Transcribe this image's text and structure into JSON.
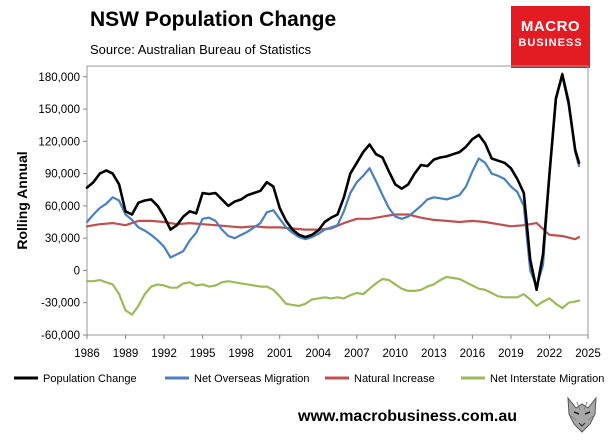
{
  "header": {
    "title": "NSW Population Change",
    "subtitle": "Source: Australian Bureau of Statistics"
  },
  "logo": {
    "line1": "MACRO",
    "line2": "BUSINESS"
  },
  "footer": {
    "website": "www.macrobusiness.com.au"
  },
  "colors": {
    "population_change": "#000000",
    "net_overseas_migration": "#4a7fc1",
    "natural_increase": "#c0504d",
    "net_interstate_migration": "#9bbb59",
    "logo_red": "#e31b23"
  },
  "chart_data": {
    "type": "line",
    "title": "NSW Population Change",
    "subtitle": "Source: Australian Bureau of Statistics",
    "xlabel": "",
    "ylabel": "Rolling Annual",
    "xlim": [
      1986,
      2025
    ],
    "ylim": [
      -60000,
      190000
    ],
    "x_ticks": [
      1986,
      1989,
      1992,
      1995,
      1998,
      2001,
      2004,
      2007,
      2010,
      2013,
      2016,
      2019,
      2022,
      2025
    ],
    "y_ticks": [
      -60000,
      -30000,
      0,
      30000,
      60000,
      90000,
      120000,
      150000,
      180000
    ],
    "y_tick_labels": [
      "-60,000",
      "-30,000",
      "0",
      "30,000",
      "60,000",
      "90,000",
      "120,000",
      "150,000",
      "180,000"
    ],
    "grid": false,
    "legend_position": "bottom",
    "series": [
      {
        "name": "Population Change",
        "color_key": "population_change",
        "x": [
          1986,
          1986.5,
          1987,
          1987.5,
          1988,
          1988.5,
          1989,
          1989.5,
          1990,
          1990.5,
          1991,
          1991.5,
          1992,
          1992.5,
          1993,
          1993.5,
          1994,
          1994.5,
          1995,
          1995.5,
          1996,
          1996.5,
          1997,
          1997.5,
          1998,
          1998.5,
          1999,
          1999.5,
          2000,
          2000.5,
          2001,
          2001.5,
          2002,
          2002.5,
          2003,
          2003.5,
          2004,
          2004.5,
          2005,
          2005.5,
          2006,
          2006.5,
          2007,
          2007.5,
          2008,
          2008.5,
          2009,
          2009.5,
          2010,
          2010.5,
          2011,
          2011.5,
          2012,
          2012.5,
          2013,
          2013.5,
          2014,
          2014.5,
          2015,
          2015.5,
          2016,
          2016.5,
          2017,
          2017.5,
          2018,
          2018.5,
          2019,
          2019.5,
          2020,
          2020.5,
          2021,
          2021.5,
          2022,
          2022.5,
          2023,
          2023.5,
          2024,
          2024.3
        ],
        "values": [
          77000,
          82000,
          90000,
          93000,
          90000,
          80000,
          55000,
          52000,
          63000,
          65000,
          66000,
          60000,
          50000,
          38000,
          42000,
          50000,
          55000,
          53000,
          72000,
          71000,
          72000,
          66000,
          60000,
          64000,
          66000,
          70000,
          72000,
          74000,
          82000,
          78000,
          58000,
          46000,
          38000,
          33000,
          31000,
          33000,
          37000,
          45000,
          49000,
          52000,
          68000,
          90000,
          100000,
          110000,
          117000,
          108000,
          105000,
          92000,
          80000,
          76000,
          80000,
          90000,
          98000,
          97000,
          103000,
          105000,
          106000,
          108000,
          110000,
          115000,
          122000,
          126000,
          118000,
          104000,
          102000,
          100000,
          95000,
          85000,
          72000,
          10000,
          -18000,
          15000,
          90000,
          160000,
          182000,
          155000,
          112000,
          100000
        ]
      },
      {
        "name": "Net Overseas Migration",
        "color_key": "net_overseas_migration",
        "x": [
          1986,
          1986.5,
          1987,
          1987.5,
          1988,
          1988.5,
          1989,
          1989.5,
          1990,
          1990.5,
          1991,
          1991.5,
          1992,
          1992.5,
          1993,
          1993.5,
          1994,
          1994.5,
          1995,
          1995.5,
          1996,
          1996.5,
          1997,
          1997.5,
          1998,
          1998.5,
          1999,
          1999.5,
          2000,
          2000.5,
          2001,
          2001.5,
          2002,
          2002.5,
          2003,
          2003.5,
          2004,
          2004.5,
          2005,
          2005.5,
          2006,
          2006.5,
          2007,
          2007.5,
          2008,
          2008.5,
          2009,
          2009.5,
          2010,
          2010.5,
          2011,
          2011.5,
          2012,
          2012.5,
          2013,
          2013.5,
          2014,
          2014.5,
          2015,
          2015.5,
          2016,
          2016.5,
          2017,
          2017.5,
          2018,
          2018.5,
          2019,
          2019.5,
          2020,
          2020.5,
          2021,
          2021.5,
          2022,
          2022.5,
          2023,
          2023.5,
          2024,
          2024.3
        ],
        "values": [
          45000,
          52000,
          58000,
          62000,
          68000,
          65000,
          52000,
          47000,
          40000,
          37000,
          33000,
          28000,
          22000,
          12000,
          15000,
          18000,
          28000,
          35000,
          48000,
          49000,
          46000,
          38000,
          32000,
          30000,
          33000,
          36000,
          40000,
          44000,
          54000,
          56000,
          48000,
          40000,
          35000,
          31000,
          29000,
          31000,
          34000,
          38000,
          40000,
          42000,
          55000,
          72000,
          82000,
          88000,
          95000,
          83000,
          70000,
          58000,
          50000,
          48000,
          50000,
          55000,
          60000,
          66000,
          68000,
          67000,
          66000,
          68000,
          70000,
          78000,
          92000,
          104000,
          100000,
          90000,
          88000,
          85000,
          78000,
          73000,
          60000,
          0,
          -15000,
          5000,
          90000,
          158000,
          183000,
          158000,
          110000,
          97000
        ]
      },
      {
        "name": "Natural Increase",
        "color_key": "natural_increase",
        "x": [
          1986,
          1987,
          1988,
          1989,
          1990,
          1991,
          1992,
          1993,
          1994,
          1995,
          1996,
          1997,
          1998,
          1999,
          2000,
          2001,
          2002,
          2003,
          2004,
          2005,
          2006,
          2007,
          2008,
          2009,
          2010,
          2011,
          2012,
          2013,
          2014,
          2015,
          2016,
          2017,
          2018,
          2019,
          2020,
          2021,
          2022,
          2023,
          2024,
          2024.3
        ],
        "values": [
          41000,
          43000,
          44000,
          42000,
          46000,
          46000,
          45000,
          43000,
          44000,
          43000,
          42000,
          41000,
          40000,
          41000,
          40000,
          40000,
          39000,
          38000,
          38000,
          39000,
          44000,
          48000,
          48000,
          50000,
          52000,
          52000,
          49000,
          47000,
          46000,
          45000,
          46000,
          45000,
          43000,
          41000,
          42000,
          44000,
          33000,
          32000,
          29000,
          31000
        ]
      },
      {
        "name": "Net Interstate Migration",
        "color_key": "net_interstate_migration",
        "x": [
          1986,
          1986.5,
          1987,
          1987.5,
          1988,
          1988.5,
          1989,
          1989.5,
          1990,
          1990.5,
          1991,
          1991.5,
          1992,
          1992.5,
          1993,
          1993.5,
          1994,
          1994.5,
          1995,
          1995.5,
          1996,
          1996.5,
          1997,
          1997.5,
          1998,
          1998.5,
          1999,
          1999.5,
          2000,
          2000.5,
          2001,
          2001.5,
          2002,
          2002.5,
          2003,
          2003.5,
          2004,
          2004.5,
          2005,
          2005.5,
          2006,
          2006.5,
          2007,
          2007.5,
          2008,
          2008.5,
          2009,
          2009.5,
          2010,
          2010.5,
          2011,
          2011.5,
          2012,
          2012.5,
          2013,
          2013.5,
          2014,
          2014.5,
          2015,
          2015.5,
          2016,
          2016.5,
          2017,
          2017.5,
          2018,
          2018.5,
          2019,
          2019.5,
          2020,
          2020.5,
          2021,
          2021.5,
          2022,
          2022.5,
          2023,
          2023.5,
          2024,
          2024.3
        ],
        "values": [
          -10000,
          -10000,
          -9000,
          -11000,
          -13000,
          -22000,
          -37000,
          -41000,
          -33000,
          -22000,
          -15000,
          -13000,
          -14000,
          -16000,
          -16000,
          -12000,
          -11000,
          -14000,
          -13000,
          -15000,
          -14000,
          -11000,
          -10000,
          -11000,
          -12000,
          -13000,
          -14000,
          -15000,
          -15000,
          -18000,
          -24000,
          -31000,
          -32000,
          -33000,
          -31000,
          -27000,
          -26000,
          -25000,
          -26000,
          -25000,
          -26000,
          -23000,
          -21000,
          -22000,
          -17000,
          -12000,
          -8000,
          -9000,
          -13000,
          -17000,
          -19000,
          -19000,
          -18000,
          -15000,
          -13000,
          -9000,
          -6000,
          -7000,
          -8000,
          -11000,
          -14000,
          -17000,
          -18000,
          -21000,
          -24000,
          -25000,
          -25000,
          -25000,
          -22000,
          -27000,
          -33000,
          -29000,
          -26000,
          -31000,
          -35000,
          -30000,
          -29000,
          -28000
        ]
      }
    ]
  }
}
